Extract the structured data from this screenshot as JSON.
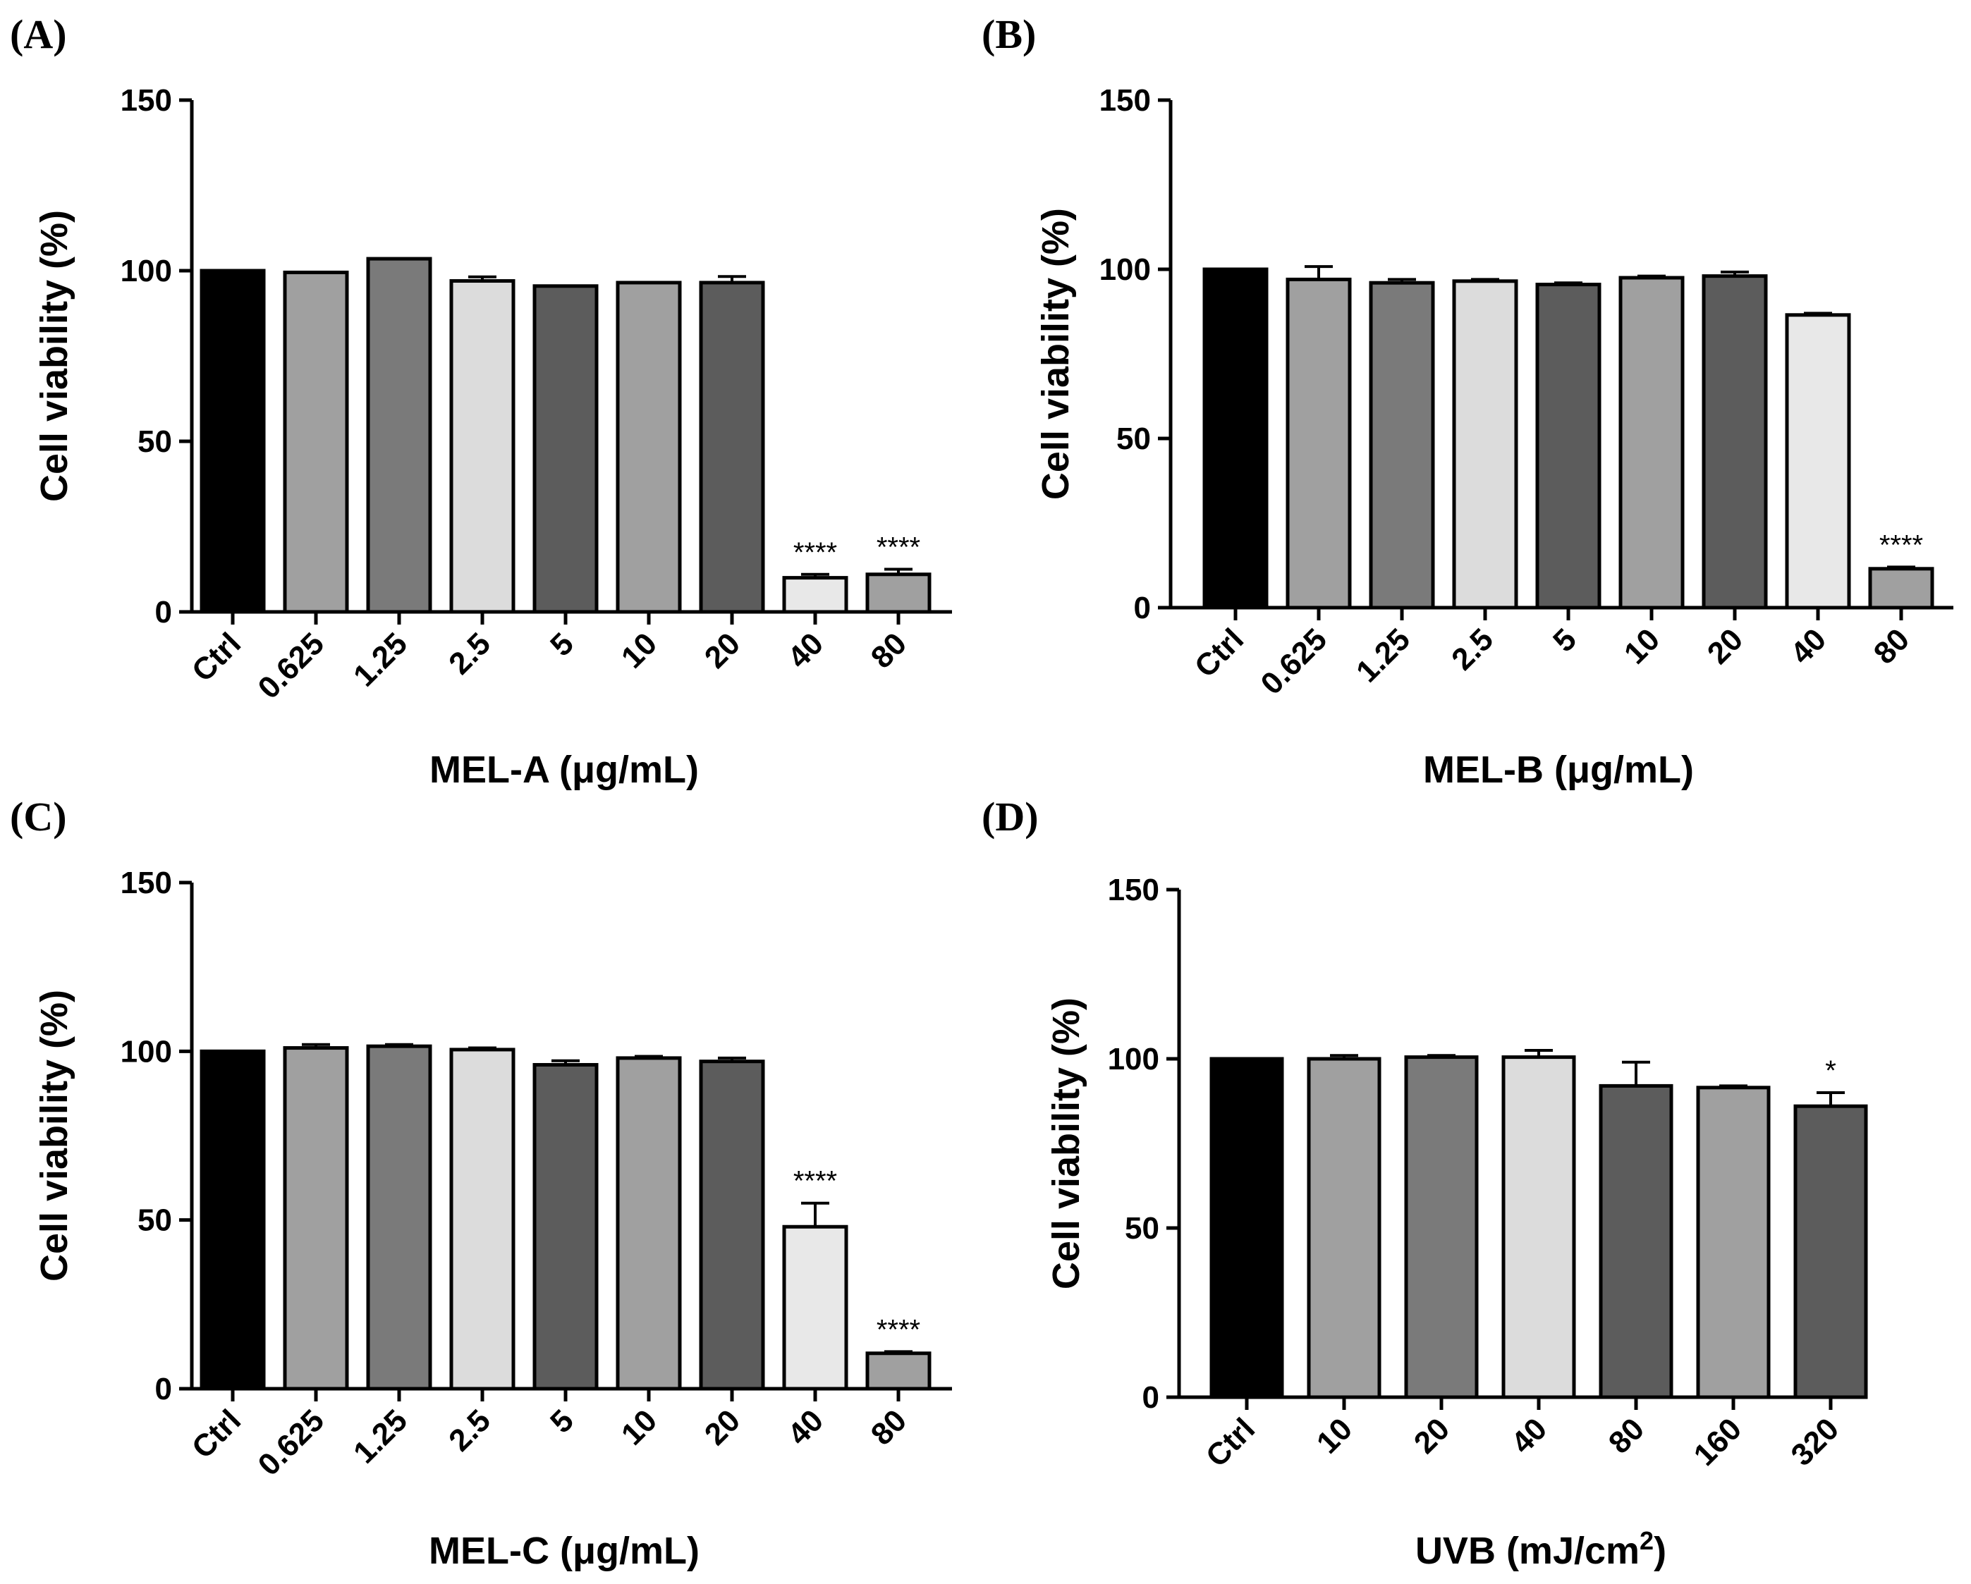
{
  "chart_data": [
    {
      "type": "bar",
      "panel": "(A)",
      "ylabel": "Cell viability (%)",
      "xlabel": "MEL-A (μg/mL)",
      "ylim": [
        0,
        150
      ],
      "yticks": [
        "0",
        "50",
        "100",
        "150"
      ],
      "categories": [
        "Ctrl",
        "0.625",
        "1.25",
        "2.5",
        "5",
        "10",
        "20",
        "40",
        "80"
      ],
      "values": [
        100,
        99.5,
        103.5,
        97,
        95.5,
        96.5,
        96.5,
        10,
        11
      ],
      "errors": [
        0,
        0,
        0,
        1.2,
        0,
        0,
        1.8,
        1,
        1.5
      ],
      "significance": [
        "",
        "",
        "",
        "",
        "",
        "",
        "",
        "****",
        "****"
      ],
      "fills": [
        "#000000",
        "#a0a0a0",
        "#7a7a7a",
        "#dcdcdc",
        "#5c5c5c",
        "#a0a0a0",
        "#5c5c5c",
        "#e8e8e8",
        "#a0a0a0"
      ]
    },
    {
      "type": "bar",
      "panel": "(B)",
      "ylabel": "Cell viability (%)",
      "xlabel": "MEL-B (μg/mL)",
      "ylim": [
        0,
        150
      ],
      "yticks": [
        "0",
        "50",
        "100",
        "150"
      ],
      "categories": [
        "Ctrl",
        "0.625",
        "1.25",
        "2.5",
        "5",
        "10",
        "20",
        "40",
        "80"
      ],
      "values": [
        100,
        97,
        96,
        96.5,
        95.5,
        97.5,
        98,
        86.5,
        11.5
      ],
      "errors": [
        0,
        3.8,
        1,
        0.5,
        0.5,
        0.5,
        1.2,
        0.5,
        0.5
      ],
      "significance": [
        "",
        "",
        "",
        "",
        "",
        "",
        "",
        "",
        "****"
      ],
      "fills": [
        "#000000",
        "#a0a0a0",
        "#7a7a7a",
        "#dcdcdc",
        "#5c5c5c",
        "#a0a0a0",
        "#5c5c5c",
        "#e8e8e8",
        "#a0a0a0"
      ]
    },
    {
      "type": "bar",
      "panel": "(C)",
      "ylabel": "Cell viability (%)",
      "xlabel": "MEL-C (μg/mL)",
      "ylim": [
        0,
        150
      ],
      "yticks": [
        "0",
        "50",
        "100",
        "150"
      ],
      "categories": [
        "Ctrl",
        "0.625",
        "1.25",
        "2.5",
        "5",
        "10",
        "20",
        "40",
        "80"
      ],
      "values": [
        100,
        101,
        101.5,
        100.5,
        96,
        98,
        97,
        48,
        10.5
      ],
      "errors": [
        0,
        1,
        0.5,
        0.5,
        1.2,
        0.5,
        1,
        7,
        0.5
      ],
      "significance": [
        "",
        "",
        "",
        "",
        "",
        "",
        "",
        "****",
        "****"
      ],
      "fills": [
        "#000000",
        "#a0a0a0",
        "#7a7a7a",
        "#dcdcdc",
        "#5c5c5c",
        "#a0a0a0",
        "#5c5c5c",
        "#e8e8e8",
        "#a0a0a0"
      ]
    },
    {
      "type": "bar",
      "panel": "(D)",
      "ylabel": "Cell viability (%)",
      "xlabel": "UVB (mJ/cm",
      "xlabel_sup": "2",
      "xlabel_end": ")",
      "ylim": [
        0,
        150
      ],
      "yticks": [
        "0",
        "50",
        "100",
        "150"
      ],
      "categories": [
        "Ctrl",
        "10",
        "20",
        "40",
        "80",
        "160",
        "320"
      ],
      "values": [
        100,
        100,
        100.5,
        100.5,
        92,
        91.5,
        86
      ],
      "errors": [
        0,
        1,
        0.5,
        2,
        7,
        0.5,
        4
      ],
      "significance": [
        "",
        "",
        "",
        "",
        "",
        "",
        "*"
      ],
      "fills": [
        "#000000",
        "#a0a0a0",
        "#7a7a7a",
        "#dcdcdc",
        "#5c5c5c",
        "#a0a0a0",
        "#5c5c5c"
      ]
    }
  ]
}
